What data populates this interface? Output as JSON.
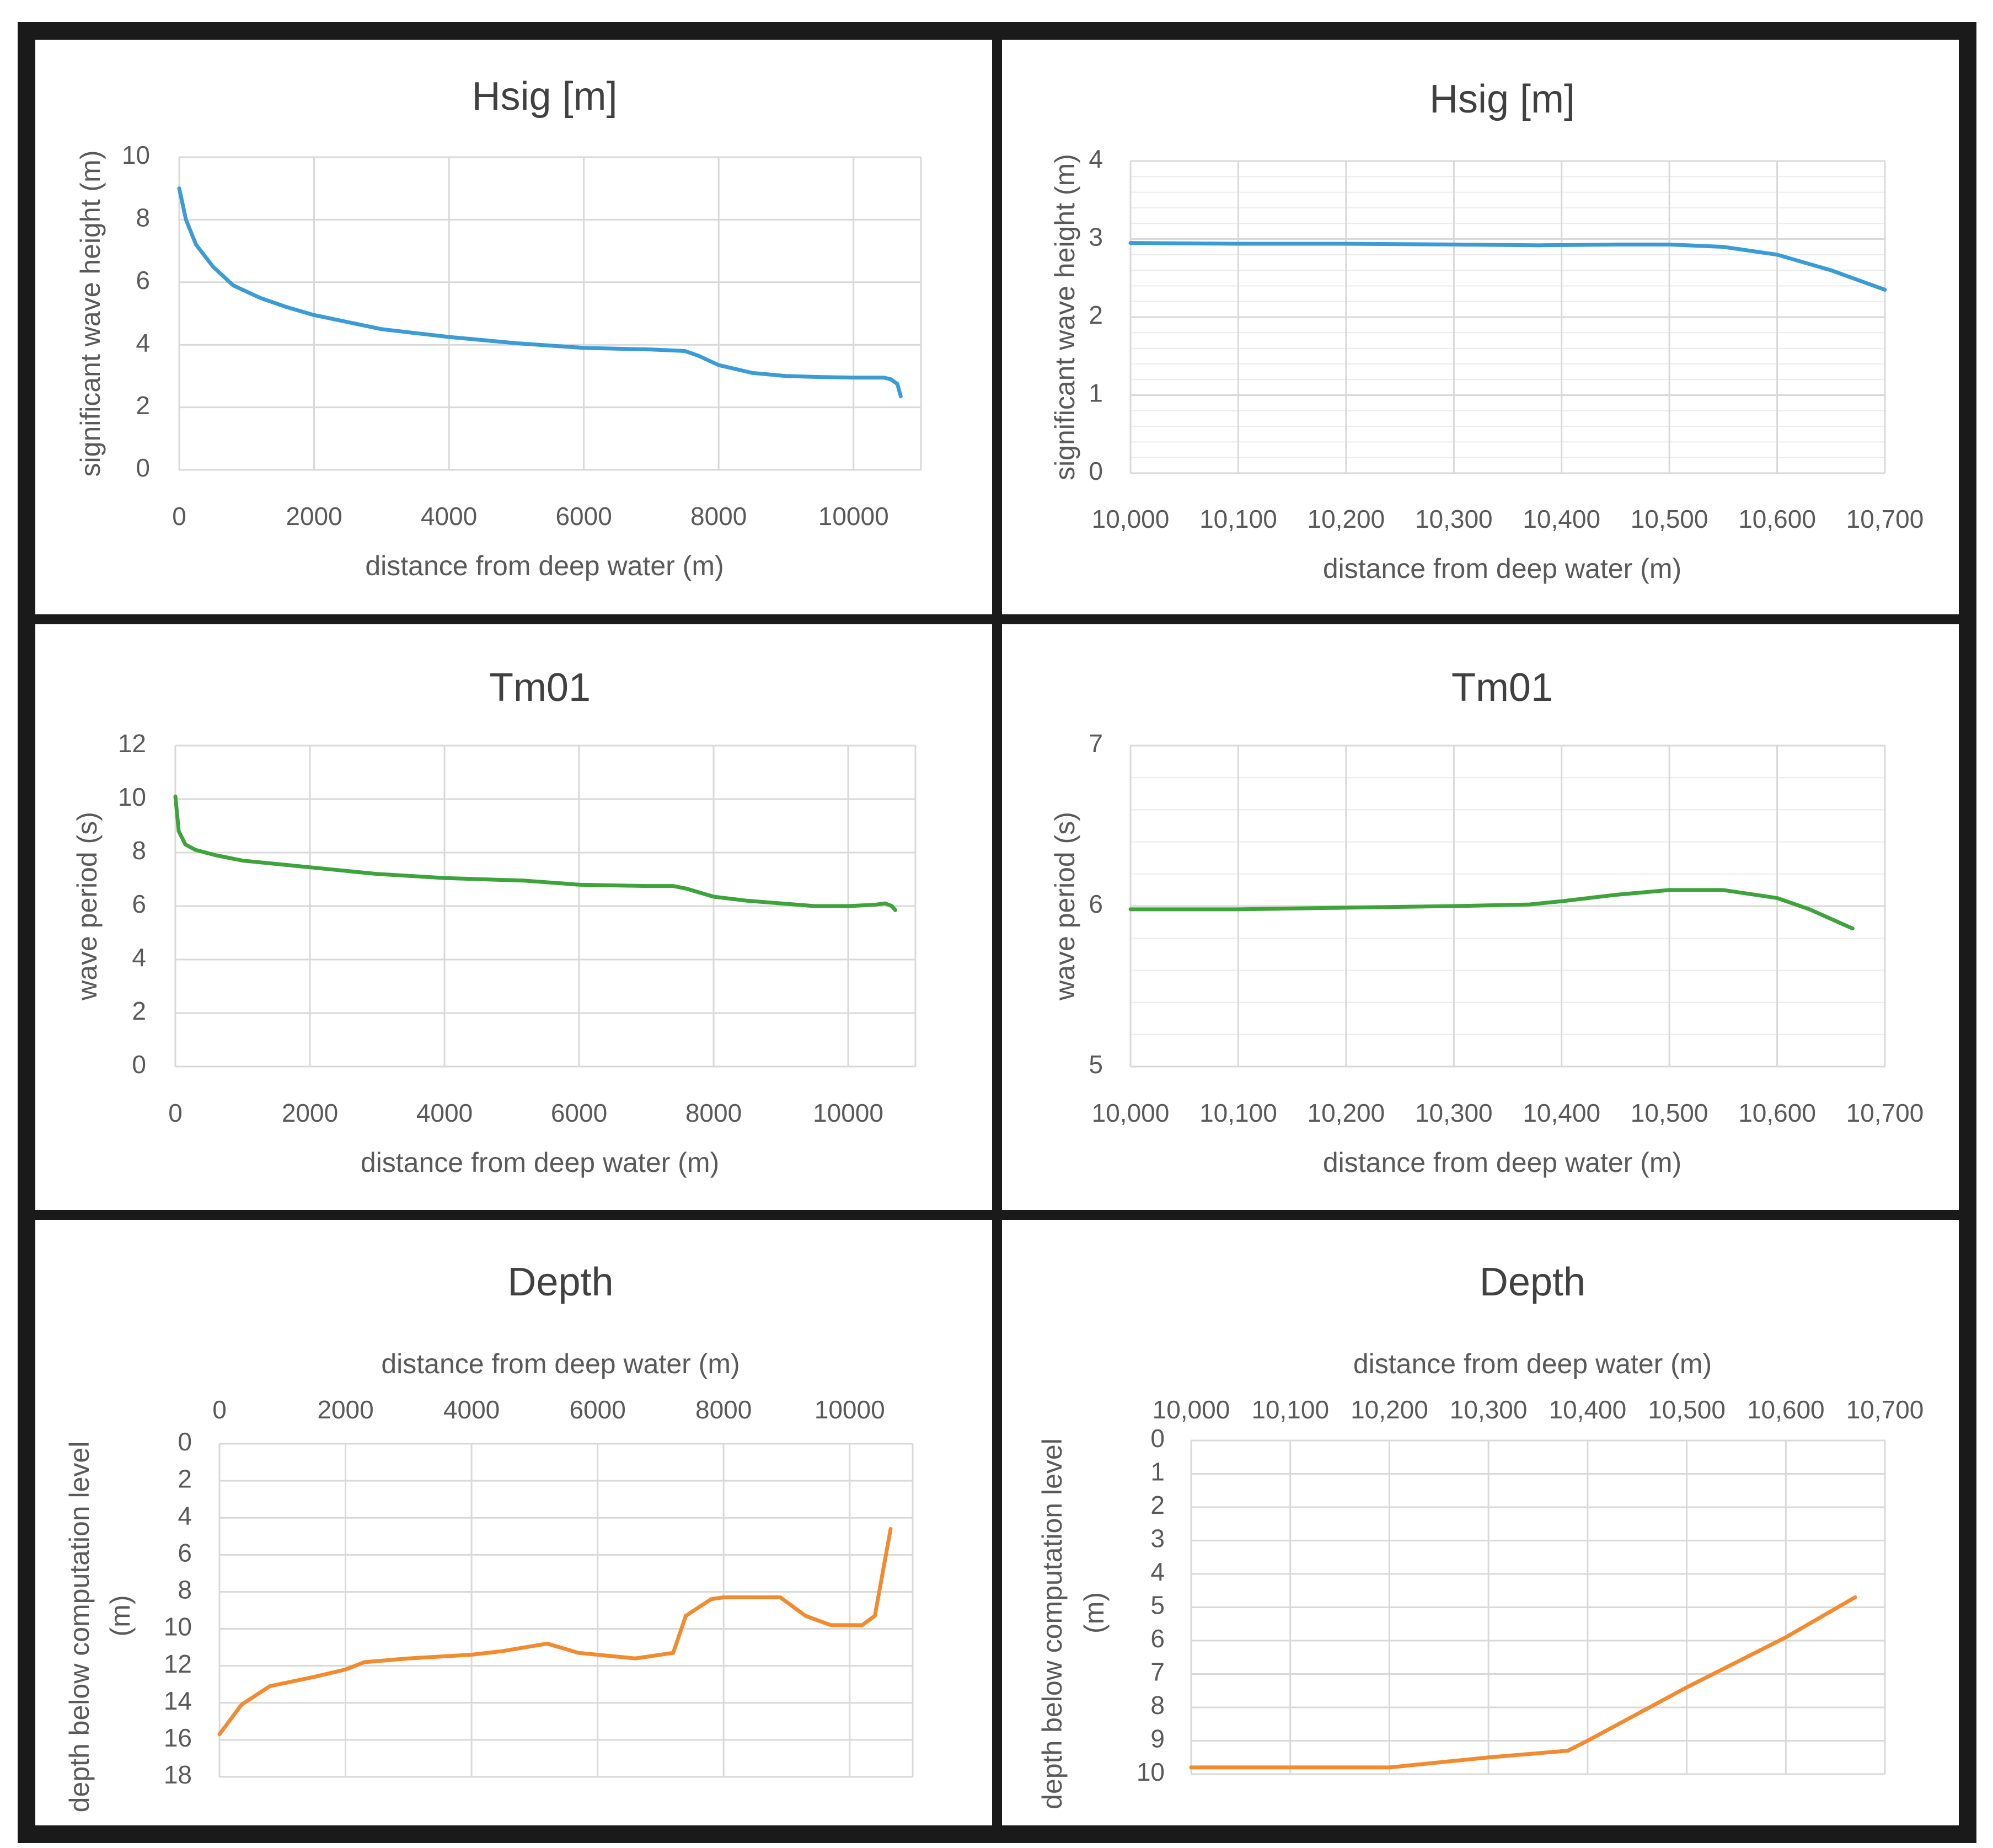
{
  "colors": {
    "hsig": "#3a9bd5",
    "tm01": "#3ea33a",
    "depth": "#f28b30"
  },
  "chart_data": [
    {
      "id": "hsig-full",
      "type": "line",
      "title": "Hsig [m]",
      "xlabel": "distance from deep water (m)",
      "ylabel": "significant wave height (m)",
      "xlim": [
        0,
        11000
      ],
      "ylim": [
        0,
        10
      ],
      "xticks": [
        0,
        2000,
        4000,
        6000,
        8000,
        10000
      ],
      "xtick_labels": [
        "0",
        "2000",
        "4000",
        "6000",
        "8000",
        "10000"
      ],
      "yticks": [
        0,
        2,
        4,
        6,
        8,
        10
      ],
      "ytick_labels": [
        "0",
        "2",
        "4",
        "6",
        "8",
        "10"
      ],
      "y_minor": 0,
      "y_reversed": false,
      "x_axis_top": false,
      "color_key": "hsig",
      "series": [
        {
          "name": "Hsig",
          "x": [
            0,
            100,
            250,
            500,
            800,
            1200,
            1600,
            2000,
            3000,
            4000,
            5000,
            6000,
            7000,
            7500,
            7700,
            8000,
            8500,
            9000,
            9500,
            10000,
            10450,
            10550,
            10650,
            10700
          ],
          "y": [
            9.0,
            8.0,
            7.2,
            6.5,
            5.9,
            5.5,
            5.2,
            4.95,
            4.5,
            4.25,
            4.05,
            3.9,
            3.85,
            3.8,
            3.65,
            3.35,
            3.1,
            3.0,
            2.97,
            2.95,
            2.95,
            2.9,
            2.75,
            2.35
          ]
        }
      ]
    },
    {
      "id": "hsig-zoom",
      "type": "line",
      "title": "Hsig [m]",
      "xlabel": "distance from deep water (m)",
      "ylabel": "significant wave height (m)",
      "xlim": [
        10000,
        10700
      ],
      "ylim": [
        0,
        4
      ],
      "xticks": [
        10000,
        10100,
        10200,
        10300,
        10400,
        10500,
        10600,
        10700
      ],
      "xtick_labels": [
        "10,000",
        "10,100",
        "10,200",
        "10,300",
        "10,400",
        "10,500",
        "10,600",
        "10,700"
      ],
      "yticks": [
        0,
        1,
        2,
        3,
        4
      ],
      "ytick_labels": [
        "0",
        "1",
        "2",
        "3",
        "4"
      ],
      "y_minor": 0.2,
      "y_reversed": false,
      "x_axis_top": false,
      "color_key": "hsig",
      "series": [
        {
          "name": "Hsig",
          "x": [
            10000,
            10100,
            10200,
            10300,
            10380,
            10450,
            10500,
            10550,
            10600,
            10650,
            10700
          ],
          "y": [
            2.95,
            2.94,
            2.94,
            2.93,
            2.92,
            2.93,
            2.93,
            2.9,
            2.8,
            2.6,
            2.35
          ]
        }
      ]
    },
    {
      "id": "tm01-full",
      "type": "line",
      "title": "Tm01",
      "xlabel": "distance from deep water (m)",
      "ylabel": "wave period (s)",
      "xlim": [
        0,
        11000
      ],
      "ylim": [
        0,
        12
      ],
      "xticks": [
        0,
        2000,
        4000,
        6000,
        8000,
        10000
      ],
      "xtick_labels": [
        "0",
        "2000",
        "4000",
        "6000",
        "8000",
        "10000"
      ],
      "yticks": [
        0,
        2,
        4,
        6,
        8,
        10,
        12
      ],
      "ytick_labels": [
        "0",
        "2",
        "4",
        "6",
        "8",
        "10",
        "12"
      ],
      "y_minor": 0,
      "y_reversed": false,
      "x_axis_top": false,
      "color_key": "tm01",
      "series": [
        {
          "name": "Tm01",
          "x": [
            0,
            50,
            150,
            300,
            600,
            1000,
            2000,
            3000,
            4000,
            5200,
            6000,
            7000,
            7400,
            7600,
            8000,
            8500,
            9000,
            9500,
            10000,
            10400,
            10550,
            10650,
            10700
          ],
          "y": [
            10.1,
            8.8,
            8.3,
            8.1,
            7.9,
            7.7,
            7.45,
            7.2,
            7.05,
            6.95,
            6.8,
            6.75,
            6.75,
            6.65,
            6.35,
            6.2,
            6.1,
            6.0,
            6.0,
            6.05,
            6.1,
            6.0,
            5.85
          ]
        }
      ]
    },
    {
      "id": "tm01-zoom",
      "type": "line",
      "title": "Tm01",
      "xlabel": "distance from deep water (m)",
      "ylabel": "wave period (s)",
      "xlim": [
        10000,
        10700
      ],
      "ylim": [
        5,
        7
      ],
      "xticks": [
        10000,
        10100,
        10200,
        10300,
        10400,
        10500,
        10600,
        10700
      ],
      "xtick_labels": [
        "10,000",
        "10,100",
        "10,200",
        "10,300",
        "10,400",
        "10,500",
        "10,600",
        "10,700"
      ],
      "yticks": [
        5,
        6,
        7
      ],
      "ytick_labels": [
        "5",
        "6",
        "7"
      ],
      "y_minor": 0.2,
      "y_reversed": false,
      "x_axis_top": false,
      "color_key": "tm01",
      "series": [
        {
          "name": "Tm01",
          "x": [
            10000,
            10100,
            10200,
            10300,
            10370,
            10400,
            10450,
            10500,
            10550,
            10600,
            10630,
            10670
          ],
          "y": [
            5.98,
            5.98,
            5.99,
            6.0,
            6.01,
            6.03,
            6.07,
            6.1,
            6.1,
            6.05,
            5.98,
            5.86
          ]
        }
      ]
    },
    {
      "id": "depth-full",
      "type": "line",
      "title": "Depth",
      "xlabel": "distance from deep water (m)",
      "ylabel": "depth below computation level (m)",
      "xlim": [
        0,
        11000
      ],
      "ylim": [
        0,
        18
      ],
      "xticks": [
        0,
        2000,
        4000,
        6000,
        8000,
        10000
      ],
      "xtick_labels": [
        "0",
        "2000",
        "4000",
        "6000",
        "8000",
        "10000"
      ],
      "yticks": [
        0,
        2,
        4,
        6,
        8,
        10,
        12,
        14,
        16,
        18
      ],
      "ytick_labels": [
        "0",
        "2",
        "4",
        "6",
        "8",
        "10",
        "12",
        "14",
        "16",
        "18"
      ],
      "y_minor": 0,
      "y_reversed": true,
      "x_axis_top": true,
      "color_key": "depth",
      "series": [
        {
          "name": "Depth",
          "x": [
            0,
            350,
            800,
            1500,
            2000,
            2300,
            3000,
            4000,
            4500,
            5200,
            5300,
            5700,
            6600,
            7200,
            7400,
            7800,
            8000,
            8500,
            8900,
            9300,
            9700,
            10200,
            10400,
            10650
          ],
          "y": [
            15.7,
            14.1,
            13.1,
            12.6,
            12.2,
            11.8,
            11.6,
            11.4,
            11.2,
            10.8,
            10.9,
            11.3,
            11.6,
            11.3,
            9.3,
            8.4,
            8.3,
            8.3,
            8.3,
            9.3,
            9.8,
            9.8,
            9.3,
            4.6
          ]
        }
      ]
    },
    {
      "id": "depth-zoom",
      "type": "line",
      "title": "Depth",
      "xlabel": "distance from deep water (m)",
      "ylabel": "depth below computation level (m)",
      "xlim": [
        10000,
        10700
      ],
      "ylim": [
        0,
        10
      ],
      "xticks": [
        10000,
        10100,
        10200,
        10300,
        10400,
        10500,
        10600,
        10700
      ],
      "xtick_labels": [
        "10,000",
        "10,100",
        "10,200",
        "10,300",
        "10,400",
        "10,500",
        "10,600",
        "10,700"
      ],
      "yticks": [
        0,
        1,
        2,
        3,
        4,
        5,
        6,
        7,
        8,
        9,
        10
      ],
      "ytick_labels": [
        "0",
        "1",
        "2",
        "3",
        "4",
        "5",
        "6",
        "7",
        "8",
        "9",
        "10"
      ],
      "y_minor": 0,
      "y_reversed": true,
      "x_axis_top": true,
      "color_key": "depth",
      "series": [
        {
          "name": "Depth",
          "x": [
            10000,
            10200,
            10300,
            10380,
            10400,
            10500,
            10600,
            10670
          ],
          "y": [
            9.8,
            9.8,
            9.5,
            9.3,
            9.0,
            7.4,
            5.9,
            4.7
          ]
        }
      ]
    }
  ]
}
